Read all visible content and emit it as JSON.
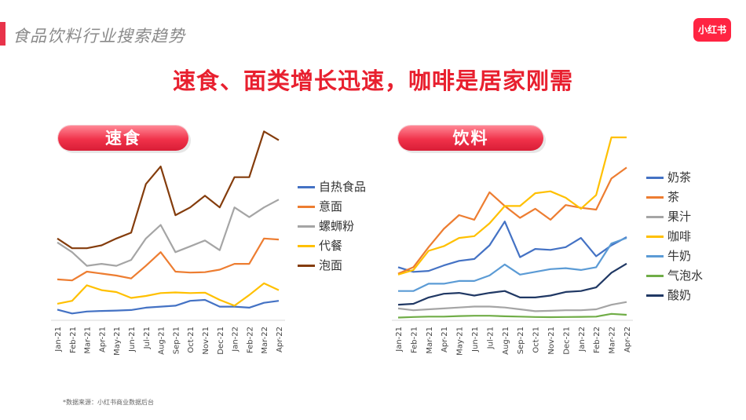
{
  "page": {
    "title": "食品饮料行业搜索趋势",
    "logo": "小红书",
    "headline": "速食、面类增长迅速，咖啡是居家刚需",
    "source_note": "*数据来源：小红书商业数据后台"
  },
  "chart_data": [
    {
      "type": "line",
      "title": "速食",
      "categories": [
        "Jan-21",
        "Feb-21",
        "Mar-21",
        "Apr-21",
        "May-21",
        "Jun-21",
        "Jul-21",
        "Aug-21",
        "Sep-21",
        "Oct-21",
        "Nov-21",
        "Dec-21",
        "Jan-22",
        "Feb-22",
        "Mar-22",
        "Apr-22"
      ],
      "ylim": [
        0,
        100
      ],
      "grid": false,
      "legend": "right",
      "series": [
        {
          "name": "自热食品",
          "color": "#4472c4",
          "values": [
            5.5,
            3.5,
            4.5,
            4.8,
            5,
            5.3,
            6.5,
            7,
            7.5,
            10,
            10.5,
            7,
            7,
            6.5,
            9,
            10
          ]
        },
        {
          "name": "意面",
          "color": "#ed7d31",
          "values": [
            21,
            20.5,
            25,
            24,
            23,
            21.5,
            28,
            35,
            25,
            24.5,
            24.7,
            26,
            29,
            29,
            42,
            41.5
          ]
        },
        {
          "name": "螺蛳粉",
          "color": "#a5a5a5",
          "values": [
            40,
            35,
            28,
            29,
            28,
            31,
            42,
            49,
            35,
            38,
            41,
            36,
            58,
            53,
            58,
            62
          ]
        },
        {
          "name": "代餐",
          "color": "#ffc000",
          "values": [
            8.5,
            10,
            18,
            15.5,
            14.5,
            11.5,
            12.5,
            14,
            14.3,
            14,
            14.2,
            10.5,
            7.5,
            13,
            19,
            15.5
          ]
        },
        {
          "name": "泡面",
          "color": "#843c0c",
          "values": [
            42,
            37,
            37,
            38.5,
            42,
            45,
            70,
            79,
            54,
            58,
            64,
            58,
            73.5,
            73.5,
            97,
            92.5
          ]
        }
      ]
    },
    {
      "type": "line",
      "title": "饮料",
      "categories": [
        "Jan-21",
        "Feb-21",
        "Mar-21",
        "Apr-21",
        "May-21",
        "Jun-21",
        "Jul-21",
        "Aug-21",
        "Sep-21",
        "Oct-21",
        "Nov-21",
        "Dec-21",
        "Jan-22",
        "Feb-22",
        "Mar-22",
        "Apr-22"
      ],
      "ylim": [
        0,
        100
      ],
      "grid": false,
      "legend": "right",
      "series": [
        {
          "name": "奶茶",
          "color": "#4472c4",
          "values": [
            29,
            26.5,
            27,
            30,
            32.5,
            33.5,
            41,
            54,
            34.5,
            39,
            38.5,
            40,
            45,
            35,
            41,
            45.5
          ]
        },
        {
          "name": "茶",
          "color": "#ed7d31",
          "values": [
            25.5,
            29,
            40,
            50,
            57.5,
            55,
            70,
            62.5,
            56,
            61,
            55,
            63,
            61.5,
            60.5,
            77.5,
            83.5
          ]
        },
        {
          "name": "果汁",
          "color": "#a5a5a5",
          "values": [
            6.5,
            5.5,
            6,
            6.5,
            7,
            7.5,
            7.5,
            7,
            6,
            5,
            5.2,
            5.5,
            5.5,
            6,
            8.5,
            10
          ]
        },
        {
          "name": "咖啡",
          "color": "#ffc000",
          "values": [
            25,
            27.5,
            38,
            40.5,
            45,
            46,
            53,
            62.5,
            62.5,
            69.5,
            70.5,
            67,
            61,
            68.5,
            100,
            100
          ]
        },
        {
          "name": "牛奶",
          "color": "#5b9bd5",
          "values": [
            16,
            16,
            20,
            20,
            21.5,
            21.5,
            24.5,
            30.5,
            25,
            26.5,
            28,
            28.5,
            27.5,
            29,
            42,
            45
          ]
        },
        {
          "name": "气泡水",
          "color": "#70ad47",
          "values": [
            1.5,
            1.8,
            2,
            2,
            2.3,
            2.5,
            2.5,
            2.2,
            2,
            1.8,
            1.7,
            1.8,
            1.9,
            2,
            3.5,
            3
          ]
        },
        {
          "name": "酸奶",
          "color": "#203864",
          "values": [
            8.5,
            9,
            12.5,
            14.5,
            15,
            13.5,
            15,
            16,
            12.5,
            12.5,
            13.5,
            15.5,
            16,
            18,
            26,
            31
          ]
        }
      ]
    }
  ]
}
